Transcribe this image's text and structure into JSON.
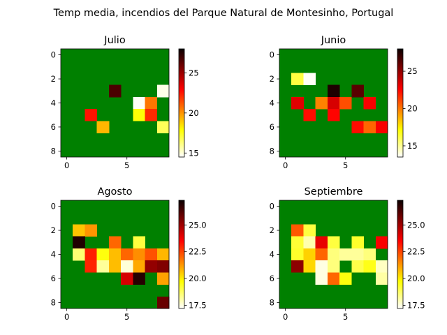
{
  "suptitle": "Temp media, incendios del Parque Natural de Montesinho, Portugal",
  "colors": {
    "background": "#008000",
    "axis": "#000000"
  },
  "chart_data": [
    {
      "type": "heatmap",
      "title": "Julio",
      "nrows": 9,
      "ncols": 9,
      "xticks": [
        0,
        5
      ],
      "yticks": [
        0,
        2,
        4,
        6,
        8
      ],
      "colormap": "hot_r",
      "vmin": 14.5,
      "vmax": 28.0,
      "colorbar_ticks": [
        15,
        20,
        25
      ],
      "colorbar_ticklabels": [
        "15",
        "20",
        "25"
      ],
      "cells": [
        {
          "row": 3,
          "col": 4,
          "value": 26.9
        },
        {
          "row": 3,
          "col": 8,
          "value": 14.8
        },
        {
          "row": 4,
          "col": 6,
          "value": 14.6
        },
        {
          "row": 4,
          "col": 7,
          "value": 20.6
        },
        {
          "row": 5,
          "col": 2,
          "value": 22.6
        },
        {
          "row": 5,
          "col": 6,
          "value": 17.8
        },
        {
          "row": 5,
          "col": 7,
          "value": 22.1
        },
        {
          "row": 6,
          "col": 3,
          "value": 19.3
        },
        {
          "row": 6,
          "col": 8,
          "value": 16.7
        }
      ]
    },
    {
      "type": "heatmap",
      "title": "Junio",
      "nrows": 9,
      "ncols": 9,
      "xticks": [
        0,
        5
      ],
      "yticks": [
        0,
        2,
        4,
        6,
        8
      ],
      "colormap": "hot_r",
      "vmin": 13.5,
      "vmax": 28.0,
      "colorbar_ticks": [
        15,
        20,
        25
      ],
      "colorbar_ticklabels": [
        "15",
        "20",
        "25"
      ],
      "cells": [
        {
          "row": 2,
          "col": 1,
          "value": 16.2
        },
        {
          "row": 2,
          "col": 2,
          "value": 13.6
        },
        {
          "row": 3,
          "col": 4,
          "value": 27.9
        },
        {
          "row": 3,
          "col": 6,
          "value": 26.5
        },
        {
          "row": 4,
          "col": 1,
          "value": 23.3
        },
        {
          "row": 4,
          "col": 3,
          "value": 19.8
        },
        {
          "row": 4,
          "col": 4,
          "value": 23.5
        },
        {
          "row": 4,
          "col": 5,
          "value": 20.9
        },
        {
          "row": 4,
          "col": 7,
          "value": 22.7
        },
        {
          "row": 5,
          "col": 2,
          "value": 22.3
        },
        {
          "row": 5,
          "col": 4,
          "value": 22.5
        },
        {
          "row": 6,
          "col": 6,
          "value": 22.3
        },
        {
          "row": 6,
          "col": 7,
          "value": 20.4
        },
        {
          "row": 6,
          "col": 8,
          "value": 22.7
        }
      ]
    },
    {
      "type": "heatmap",
      "title": "Agosto",
      "nrows": 9,
      "ncols": 9,
      "xticks": [
        0,
        5
      ],
      "yticks": [
        0,
        2,
        4,
        6,
        8
      ],
      "colormap": "hot_r",
      "vmin": 17.2,
      "vmax": 27.3,
      "colorbar_ticks": [
        17.5,
        20.0,
        22.5,
        25.0
      ],
      "colorbar_ticklabels": [
        "17.5",
        "20.0",
        "22.5",
        "25.0"
      ],
      "cells": [
        {
          "row": 2,
          "col": 1,
          "value": 20.6
        },
        {
          "row": 2,
          "col": 2,
          "value": 21.3
        },
        {
          "row": 3,
          "col": 1,
          "value": 27.2
        },
        {
          "row": 3,
          "col": 4,
          "value": 22.0
        },
        {
          "row": 3,
          "col": 6,
          "value": 19.1
        },
        {
          "row": 4,
          "col": 1,
          "value": 18.6
        },
        {
          "row": 4,
          "col": 2,
          "value": 23.1
        },
        {
          "row": 4,
          "col": 3,
          "value": 19.6
        },
        {
          "row": 4,
          "col": 4,
          "value": 20.7
        },
        {
          "row": 4,
          "col": 5,
          "value": 22.0
        },
        {
          "row": 4,
          "col": 6,
          "value": 21.4
        },
        {
          "row": 4,
          "col": 7,
          "value": 22.3
        },
        {
          "row": 4,
          "col": 8,
          "value": 20.8
        },
        {
          "row": 5,
          "col": 2,
          "value": 23.0
        },
        {
          "row": 5,
          "col": 3,
          "value": 18.2
        },
        {
          "row": 5,
          "col": 4,
          "value": 20.7
        },
        {
          "row": 5,
          "col": 5,
          "value": 17.6
        },
        {
          "row": 5,
          "col": 6,
          "value": 21.0
        },
        {
          "row": 5,
          "col": 7,
          "value": 25.3
        },
        {
          "row": 5,
          "col": 8,
          "value": 25.6
        },
        {
          "row": 6,
          "col": 5,
          "value": 24.2
        },
        {
          "row": 6,
          "col": 6,
          "value": 27.1
        },
        {
          "row": 6,
          "col": 8,
          "value": 21.1
        },
        {
          "row": 8,
          "col": 8,
          "value": 26.0
        }
      ]
    },
    {
      "type": "heatmap",
      "title": "Septiembre",
      "nrows": 9,
      "ncols": 9,
      "xticks": [
        0,
        5
      ],
      "yticks": [
        0,
        2,
        4,
        6,
        8
      ],
      "colormap": "hot_r",
      "vmin": 17.2,
      "vmax": 27.3,
      "colorbar_ticks": [
        17.5,
        20.0,
        22.5,
        25.0
      ],
      "colorbar_ticklabels": [
        "17.5",
        "20.0",
        "22.5",
        "25.0"
      ],
      "cells": [
        {
          "row": 2,
          "col": 1,
          "value": 22.2
        },
        {
          "row": 2,
          "col": 2,
          "value": 19.1
        },
        {
          "row": 3,
          "col": 1,
          "value": 19.2
        },
        {
          "row": 3,
          "col": 2,
          "value": 18.0
        },
        {
          "row": 3,
          "col": 3,
          "value": 23.9
        },
        {
          "row": 3,
          "col": 4,
          "value": 19.1
        },
        {
          "row": 3,
          "col": 6,
          "value": 19.3
        },
        {
          "row": 3,
          "col": 8,
          "value": 23.6
        },
        {
          "row": 4,
          "col": 1,
          "value": 19.3
        },
        {
          "row": 4,
          "col": 2,
          "value": 20.4
        },
        {
          "row": 4,
          "col": 3,
          "value": 22.0
        },
        {
          "row": 4,
          "col": 4,
          "value": 18.5
        },
        {
          "row": 4,
          "col": 5,
          "value": 18.2
        },
        {
          "row": 4,
          "col": 6,
          "value": 18.2
        },
        {
          "row": 4,
          "col": 7,
          "value": 18.5
        },
        {
          "row": 5,
          "col": 1,
          "value": 25.4
        },
        {
          "row": 5,
          "col": 2,
          "value": 20.3
        },
        {
          "row": 5,
          "col": 3,
          "value": 17.5
        },
        {
          "row": 5,
          "col": 4,
          "value": 18.5
        },
        {
          "row": 5,
          "col": 6,
          "value": 19.0
        },
        {
          "row": 5,
          "col": 7,
          "value": 19.5
        },
        {
          "row": 5,
          "col": 8,
          "value": 17.8
        },
        {
          "row": 6,
          "col": 3,
          "value": 17.5
        },
        {
          "row": 6,
          "col": 4,
          "value": 22.0
        },
        {
          "row": 6,
          "col": 5,
          "value": 19.6
        },
        {
          "row": 6,
          "col": 8,
          "value": 18.1
        }
      ]
    }
  ]
}
